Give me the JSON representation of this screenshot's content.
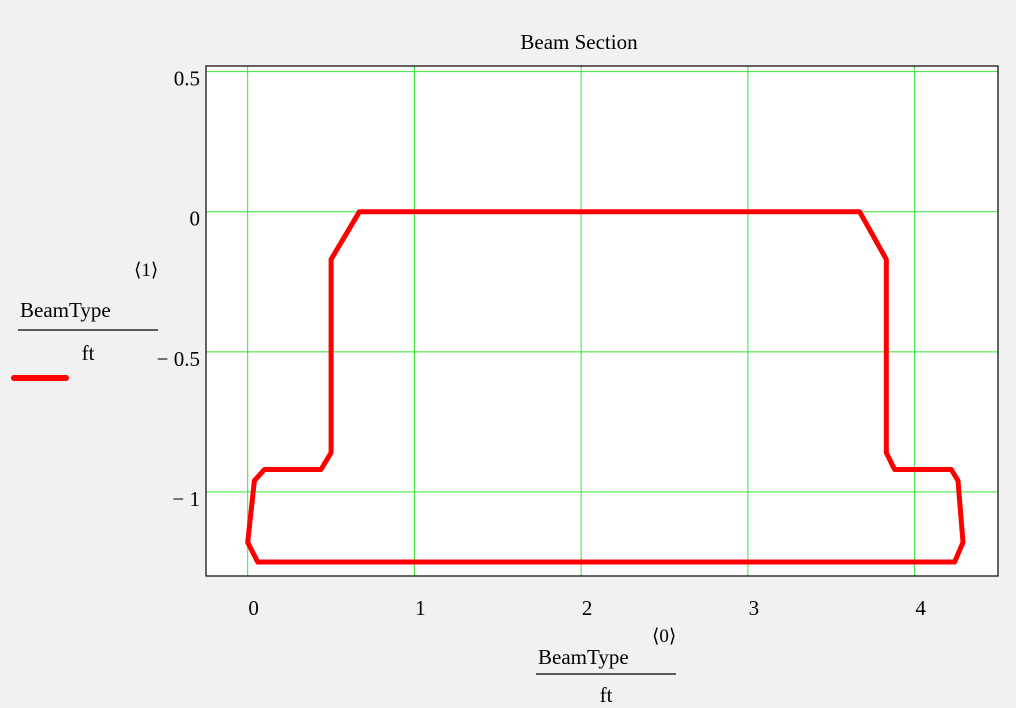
{
  "chart_data": {
    "type": "line",
    "title": "Beam Section",
    "xlabel": {
      "name": "BeamType",
      "superscript": "⟨0⟩",
      "denominator": "ft"
    },
    "ylabel": {
      "name": "BeamType",
      "superscript": "⟨1⟩",
      "denominator": "ft"
    },
    "xlim": [
      -0.25,
      4.5
    ],
    "ylim": [
      -1.3,
      0.52
    ],
    "x_ticks": [
      {
        "value": 0,
        "label": "0"
      },
      {
        "value": 1,
        "label": "1"
      },
      {
        "value": 2,
        "label": "2"
      },
      {
        "value": 3,
        "label": "3"
      },
      {
        "value": 4,
        "label": "4"
      }
    ],
    "y_ticks": [
      {
        "value": 0.5,
        "label": "0.5"
      },
      {
        "value": 0,
        "label": "0"
      },
      {
        "value": -0.5,
        "label": "− 0.5"
      },
      {
        "value": -1,
        "label": "− 1"
      }
    ],
    "grid": true,
    "grid_color": "#33e633",
    "series": [
      {
        "color": "#ff0000",
        "points": [
          [
            0.06,
            -1.25
          ],
          [
            4.24,
            -1.25
          ],
          [
            4.29,
            -1.18
          ],
          [
            4.26,
            -0.96
          ],
          [
            4.22,
            -0.92
          ],
          [
            3.88,
            -0.92
          ],
          [
            3.83,
            -0.86
          ],
          [
            3.83,
            -0.17
          ],
          [
            3.67,
            0.0
          ],
          [
            0.67,
            0.0
          ],
          [
            0.5,
            -0.17
          ],
          [
            0.5,
            -0.86
          ],
          [
            0.44,
            -0.92
          ],
          [
            0.1,
            -0.92
          ],
          [
            0.04,
            -0.96
          ],
          [
            0.0,
            -1.18
          ],
          [
            0.06,
            -1.25
          ]
        ]
      }
    ]
  }
}
